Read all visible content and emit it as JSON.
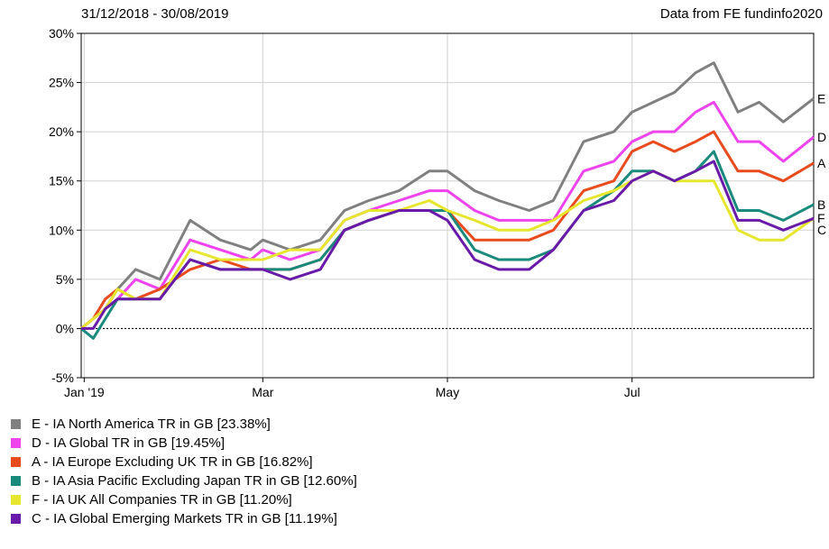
{
  "chart_data": {
    "type": "line",
    "title": "31/12/2018 - 30/08/2019",
    "source": "Data from FE fundinfo2020",
    "xlabel": "",
    "ylabel": "",
    "x_range": [
      "2018-12-31",
      "2019-08-30"
    ],
    "x_ticks": [
      {
        "date": "2019-01-01",
        "label": "Jan '19"
      },
      {
        "date": "2019-03-01",
        "label": "Mar"
      },
      {
        "date": "2019-05-01",
        "label": "May"
      },
      {
        "date": "2019-07-01",
        "label": "Jul"
      }
    ],
    "ylim": [
      -5,
      30
    ],
    "y_ticks": [
      {
        "value": 30,
        "label": "30%"
      },
      {
        "value": 25,
        "label": "25%"
      },
      {
        "value": 20,
        "label": "20%"
      },
      {
        "value": 15,
        "label": "15%"
      },
      {
        "value": 10,
        "label": "10%"
      },
      {
        "value": 5,
        "label": "5%"
      },
      {
        "value": 0,
        "label": "0%"
      },
      {
        "value": -5,
        "label": "-5%"
      }
    ],
    "grid": true,
    "zero_line": "dotted",
    "legend_position": "bottom-left",
    "series": [
      {
        "key": "E",
        "name": "E - IA North America TR in GB [23.38%]",
        "color": "#808080",
        "x": [
          "2018-12-31",
          "2019-01-04",
          "2019-01-08",
          "2019-01-12",
          "2019-01-18",
          "2019-01-26",
          "2019-02-05",
          "2019-02-15",
          "2019-02-25",
          "2019-03-01",
          "2019-03-10",
          "2019-03-20",
          "2019-03-28",
          "2019-04-05",
          "2019-04-15",
          "2019-04-25",
          "2019-05-01",
          "2019-05-10",
          "2019-05-18",
          "2019-05-28",
          "2019-06-05",
          "2019-06-15",
          "2019-06-25",
          "2019-07-01",
          "2019-07-08",
          "2019-07-15",
          "2019-07-22",
          "2019-07-28",
          "2019-08-05",
          "2019-08-12",
          "2019-08-20",
          "2019-08-30"
        ],
        "y": [
          0,
          1,
          2,
          4,
          6,
          5,
          11,
          9,
          8,
          9,
          8,
          9,
          12,
          13,
          14,
          16,
          16,
          14,
          13,
          12,
          13,
          19,
          20,
          22,
          23,
          24,
          26,
          27,
          22,
          23,
          21,
          23.38
        ]
      },
      {
        "key": "D",
        "name": "D - IA Global TR in GB [19.45%]",
        "color": "#ee44ee",
        "x": [
          "2018-12-31",
          "2019-01-04",
          "2019-01-08",
          "2019-01-12",
          "2019-01-18",
          "2019-01-26",
          "2019-02-05",
          "2019-02-15",
          "2019-02-25",
          "2019-03-01",
          "2019-03-10",
          "2019-03-20",
          "2019-03-28",
          "2019-04-05",
          "2019-04-15",
          "2019-04-25",
          "2019-05-01",
          "2019-05-10",
          "2019-05-18",
          "2019-05-28",
          "2019-06-05",
          "2019-06-15",
          "2019-06-25",
          "2019-07-01",
          "2019-07-08",
          "2019-07-15",
          "2019-07-22",
          "2019-07-28",
          "2019-08-05",
          "2019-08-12",
          "2019-08-20",
          "2019-08-30"
        ],
        "y": [
          0,
          1,
          2,
          3,
          5,
          4,
          9,
          8,
          7,
          8,
          7,
          8,
          11,
          12,
          13,
          14,
          14,
          12,
          11,
          11,
          11,
          16,
          17,
          19,
          20,
          20,
          22,
          23,
          19,
          19,
          17,
          19.45
        ]
      },
      {
        "key": "A",
        "name": "A - IA Europe Excluding UK TR in GB [16.82%]",
        "color": "#e84c1e",
        "x": [
          "2018-12-31",
          "2019-01-04",
          "2019-01-08",
          "2019-01-12",
          "2019-01-18",
          "2019-01-26",
          "2019-02-05",
          "2019-02-15",
          "2019-02-25",
          "2019-03-01",
          "2019-03-10",
          "2019-03-20",
          "2019-03-28",
          "2019-04-05",
          "2019-04-15",
          "2019-04-25",
          "2019-05-01",
          "2019-05-10",
          "2019-05-18",
          "2019-05-28",
          "2019-06-05",
          "2019-06-15",
          "2019-06-25",
          "2019-07-01",
          "2019-07-08",
          "2019-07-15",
          "2019-07-22",
          "2019-07-28",
          "2019-08-05",
          "2019-08-12",
          "2019-08-20",
          "2019-08-30"
        ],
        "y": [
          0,
          1,
          3,
          4,
          3,
          4,
          6,
          7,
          6,
          6,
          6,
          7,
          10,
          11,
          12,
          12,
          12,
          9,
          9,
          9,
          10,
          14,
          15,
          18,
          19,
          18,
          19,
          20,
          16,
          16,
          15,
          16.82
        ]
      },
      {
        "key": "B",
        "name": "B - IA Asia Pacific Excluding Japan TR in GB [12.60%]",
        "color": "#1a8a7c",
        "x": [
          "2018-12-31",
          "2019-01-04",
          "2019-01-08",
          "2019-01-12",
          "2019-01-18",
          "2019-01-26",
          "2019-02-05",
          "2019-02-15",
          "2019-02-25",
          "2019-03-01",
          "2019-03-10",
          "2019-03-20",
          "2019-03-28",
          "2019-04-05",
          "2019-04-15",
          "2019-04-25",
          "2019-05-01",
          "2019-05-10",
          "2019-05-18",
          "2019-05-28",
          "2019-06-05",
          "2019-06-15",
          "2019-06-25",
          "2019-07-01",
          "2019-07-08",
          "2019-07-15",
          "2019-07-22",
          "2019-07-28",
          "2019-08-05",
          "2019-08-12",
          "2019-08-20",
          "2019-08-30"
        ],
        "y": [
          0,
          -1,
          1,
          3,
          3,
          3,
          7,
          6,
          6,
          6,
          6,
          7,
          10,
          11,
          12,
          12,
          12,
          8,
          7,
          7,
          8,
          12,
          14,
          16,
          16,
          15,
          16,
          18,
          12,
          12,
          11,
          12.6
        ]
      },
      {
        "key": "F",
        "name": "F - IA UK All Companies TR in GB [11.20%]",
        "color": "#e6e62e",
        "x": [
          "2018-12-31",
          "2019-01-04",
          "2019-01-08",
          "2019-01-12",
          "2019-01-18",
          "2019-01-26",
          "2019-02-05",
          "2019-02-15",
          "2019-02-25",
          "2019-03-01",
          "2019-03-10",
          "2019-03-20",
          "2019-03-28",
          "2019-04-05",
          "2019-04-15",
          "2019-04-25",
          "2019-05-01",
          "2019-05-10",
          "2019-05-18",
          "2019-05-28",
          "2019-06-05",
          "2019-06-15",
          "2019-06-25",
          "2019-07-01",
          "2019-07-08",
          "2019-07-15",
          "2019-07-22",
          "2019-07-28",
          "2019-08-05",
          "2019-08-12",
          "2019-08-20",
          "2019-08-30"
        ],
        "y": [
          0,
          1,
          2,
          4,
          3,
          3,
          8,
          7,
          7,
          7,
          8,
          8,
          11,
          12,
          12,
          13,
          12,
          11,
          10,
          10,
          11,
          13,
          14,
          15,
          16,
          15,
          15,
          15,
          10,
          9,
          9,
          11.2
        ]
      },
      {
        "key": "C",
        "name": "C - IA Global Emerging Markets TR in GB [11.19%]",
        "color": "#6a1aa8",
        "x": [
          "2018-12-31",
          "2019-01-04",
          "2019-01-08",
          "2019-01-12",
          "2019-01-18",
          "2019-01-26",
          "2019-02-05",
          "2019-02-15",
          "2019-02-25",
          "2019-03-01",
          "2019-03-10",
          "2019-03-20",
          "2019-03-28",
          "2019-04-05",
          "2019-04-15",
          "2019-04-25",
          "2019-05-01",
          "2019-05-10",
          "2019-05-18",
          "2019-05-28",
          "2019-06-05",
          "2019-06-15",
          "2019-06-25",
          "2019-07-01",
          "2019-07-08",
          "2019-07-15",
          "2019-07-22",
          "2019-07-28",
          "2019-08-05",
          "2019-08-12",
          "2019-08-20",
          "2019-08-30"
        ],
        "y": [
          0,
          0,
          2,
          3,
          3,
          3,
          7,
          6,
          6,
          6,
          5,
          6,
          10,
          11,
          12,
          12,
          11,
          7,
          6,
          6,
          8,
          12,
          13,
          15,
          16,
          15,
          16,
          17,
          11,
          11,
          10,
          11.19
        ]
      }
    ]
  }
}
